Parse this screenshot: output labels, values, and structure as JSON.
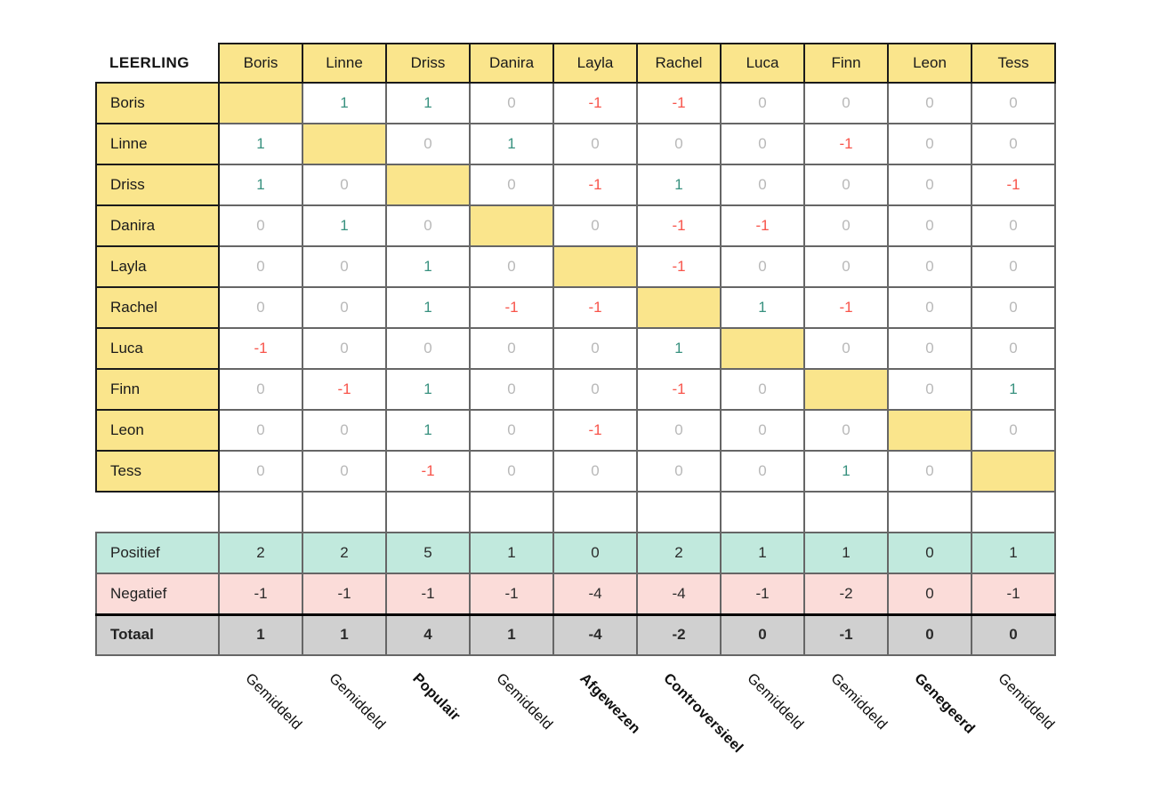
{
  "chart_data": {
    "type": "table",
    "corner_label": "LEERLING",
    "columns": [
      "Boris",
      "Linne",
      "Driss",
      "Danira",
      "Layla",
      "Rachel",
      "Luca",
      "Finn",
      "Leon",
      "Tess"
    ],
    "rows": [
      {
        "name": "Boris",
        "values": [
          null,
          1,
          1,
          0,
          -1,
          -1,
          0,
          0,
          0,
          0
        ]
      },
      {
        "name": "Linne",
        "values": [
          1,
          null,
          0,
          1,
          0,
          0,
          0,
          -1,
          0,
          0
        ]
      },
      {
        "name": "Driss",
        "values": [
          1,
          0,
          null,
          0,
          -1,
          1,
          0,
          0,
          0,
          -1
        ]
      },
      {
        "name": "Danira",
        "values": [
          0,
          1,
          0,
          null,
          0,
          -1,
          -1,
          0,
          0,
          0
        ]
      },
      {
        "name": "Layla",
        "values": [
          0,
          0,
          1,
          0,
          null,
          -1,
          0,
          0,
          0,
          0
        ]
      },
      {
        "name": "Rachel",
        "values": [
          0,
          0,
          1,
          -1,
          -1,
          null,
          1,
          -1,
          0,
          0
        ]
      },
      {
        "name": "Luca",
        "values": [
          -1,
          0,
          0,
          0,
          0,
          1,
          null,
          0,
          0,
          0
        ]
      },
      {
        "name": "Finn",
        "values": [
          0,
          -1,
          1,
          0,
          0,
          -1,
          0,
          null,
          0,
          1
        ]
      },
      {
        "name": "Leon",
        "values": [
          0,
          0,
          1,
          0,
          -1,
          0,
          0,
          0,
          null,
          0
        ]
      },
      {
        "name": "Tess",
        "values": [
          0,
          0,
          -1,
          0,
          0,
          0,
          0,
          1,
          0,
          null
        ]
      }
    ],
    "summary_rows": [
      {
        "name": "Positief",
        "style": "positief",
        "values": [
          2,
          2,
          5,
          1,
          0,
          2,
          1,
          1,
          0,
          1
        ]
      },
      {
        "name": "Negatief",
        "style": "negatief",
        "values": [
          -1,
          -1,
          -1,
          -1,
          -4,
          -4,
          -1,
          -2,
          0,
          -1
        ]
      },
      {
        "name": "Totaal",
        "style": "totaal",
        "values": [
          1,
          1,
          4,
          1,
          -4,
          -2,
          0,
          -1,
          0,
          0
        ]
      }
    ],
    "column_classifications": [
      {
        "label": "Gemiddeld",
        "bold": false
      },
      {
        "label": "Gemiddeld",
        "bold": false
      },
      {
        "label": "Populair",
        "bold": true
      },
      {
        "label": "Gemiddeld",
        "bold": false
      },
      {
        "label": "Afgewezen",
        "bold": true
      },
      {
        "label": "Controversieel",
        "bold": true
      },
      {
        "label": "Gemiddeld",
        "bold": false
      },
      {
        "label": "Gemiddeld",
        "bold": false
      },
      {
        "label": "Genegeerd",
        "bold": true
      },
      {
        "label": "Gemiddeld",
        "bold": false
      }
    ]
  },
  "colors": {
    "header_fill": "#FAE58C",
    "positief_fill": "#C1E9DD",
    "negatief_fill": "#FBDCD9",
    "totaal_fill": "#D0D0D0",
    "positive_value": "#38917F",
    "negative_value": "#F8544A",
    "zero_value": "#B8B8B8"
  }
}
